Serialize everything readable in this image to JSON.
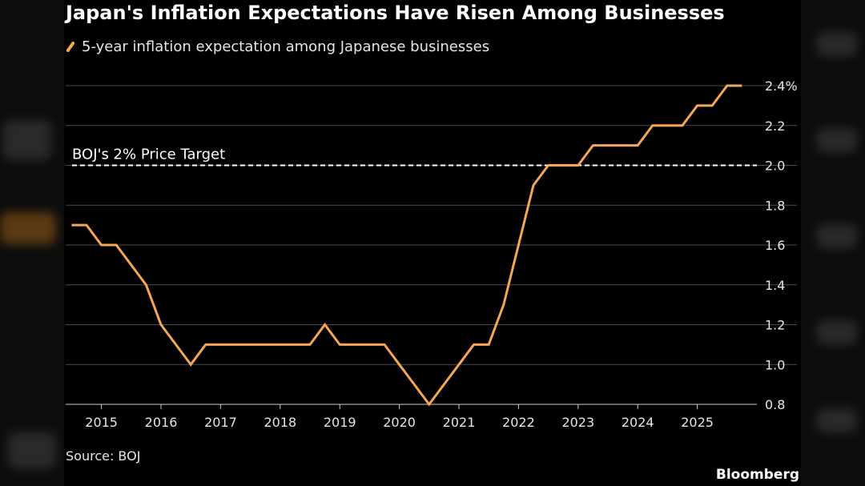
{
  "chart_data": {
    "type": "line",
    "title": "Japan's Inflation Expectations Have Risen Among Businesses",
    "source": "Source: BOJ",
    "brand": "Bloomberg",
    "y_unit_suffix": "%",
    "ylim": [
      0.8,
      2.4
    ],
    "y_ticks": [
      0.8,
      1.0,
      1.2,
      1.4,
      1.6,
      1.8,
      2.0,
      2.2,
      2.4
    ],
    "y_tick_labels": [
      "0.8",
      "1.0",
      "1.2",
      "1.4",
      "1.6",
      "1.8",
      "2.0",
      "2.2",
      "2.4%"
    ],
    "xlim": [
      2014.4,
      2026.0
    ],
    "x_ticks": [
      2015,
      2016,
      2017,
      2018,
      2019,
      2020,
      2021,
      2022,
      2023,
      2024,
      2025
    ],
    "x_tick_labels": [
      "2015",
      "2016",
      "2017",
      "2018",
      "2019",
      "2020",
      "2021",
      "2022",
      "2023",
      "2024",
      "2025"
    ],
    "reference_line": {
      "label": "BOJ's 2% Price Target",
      "value": 2.0,
      "color": "#ffffff"
    },
    "series": [
      {
        "name": "5-year inflation expectation among Japanese businesses",
        "color": "#f5a656",
        "x": [
          2014.5,
          2014.75,
          2015.0,
          2015.25,
          2015.5,
          2015.75,
          2016.0,
          2016.25,
          2016.5,
          2016.75,
          2017.0,
          2017.25,
          2017.5,
          2017.75,
          2018.0,
          2018.25,
          2018.5,
          2018.75,
          2019.0,
          2019.25,
          2019.5,
          2019.75,
          2020.0,
          2020.25,
          2020.5,
          2020.75,
          2021.0,
          2021.25,
          2021.5,
          2021.75,
          2022.0,
          2022.25,
          2022.5,
          2022.75,
          2023.0,
          2023.25,
          2023.5,
          2023.75,
          2024.0,
          2024.25,
          2024.5,
          2024.75,
          2025.0,
          2025.25,
          2025.5,
          2025.75
        ],
        "y": [
          1.7,
          1.7,
          1.6,
          1.6,
          1.5,
          1.4,
          1.2,
          1.1,
          1.0,
          1.1,
          1.1,
          1.1,
          1.1,
          1.1,
          1.1,
          1.1,
          1.1,
          1.2,
          1.1,
          1.1,
          1.1,
          1.1,
          1.0,
          0.9,
          0.8,
          0.9,
          1.0,
          1.1,
          1.1,
          1.3,
          1.6,
          1.9,
          2.0,
          2.0,
          2.0,
          2.1,
          2.1,
          2.1,
          2.1,
          2.2,
          2.2,
          2.2,
          2.3,
          2.3,
          2.4,
          2.4
        ]
      }
    ]
  }
}
